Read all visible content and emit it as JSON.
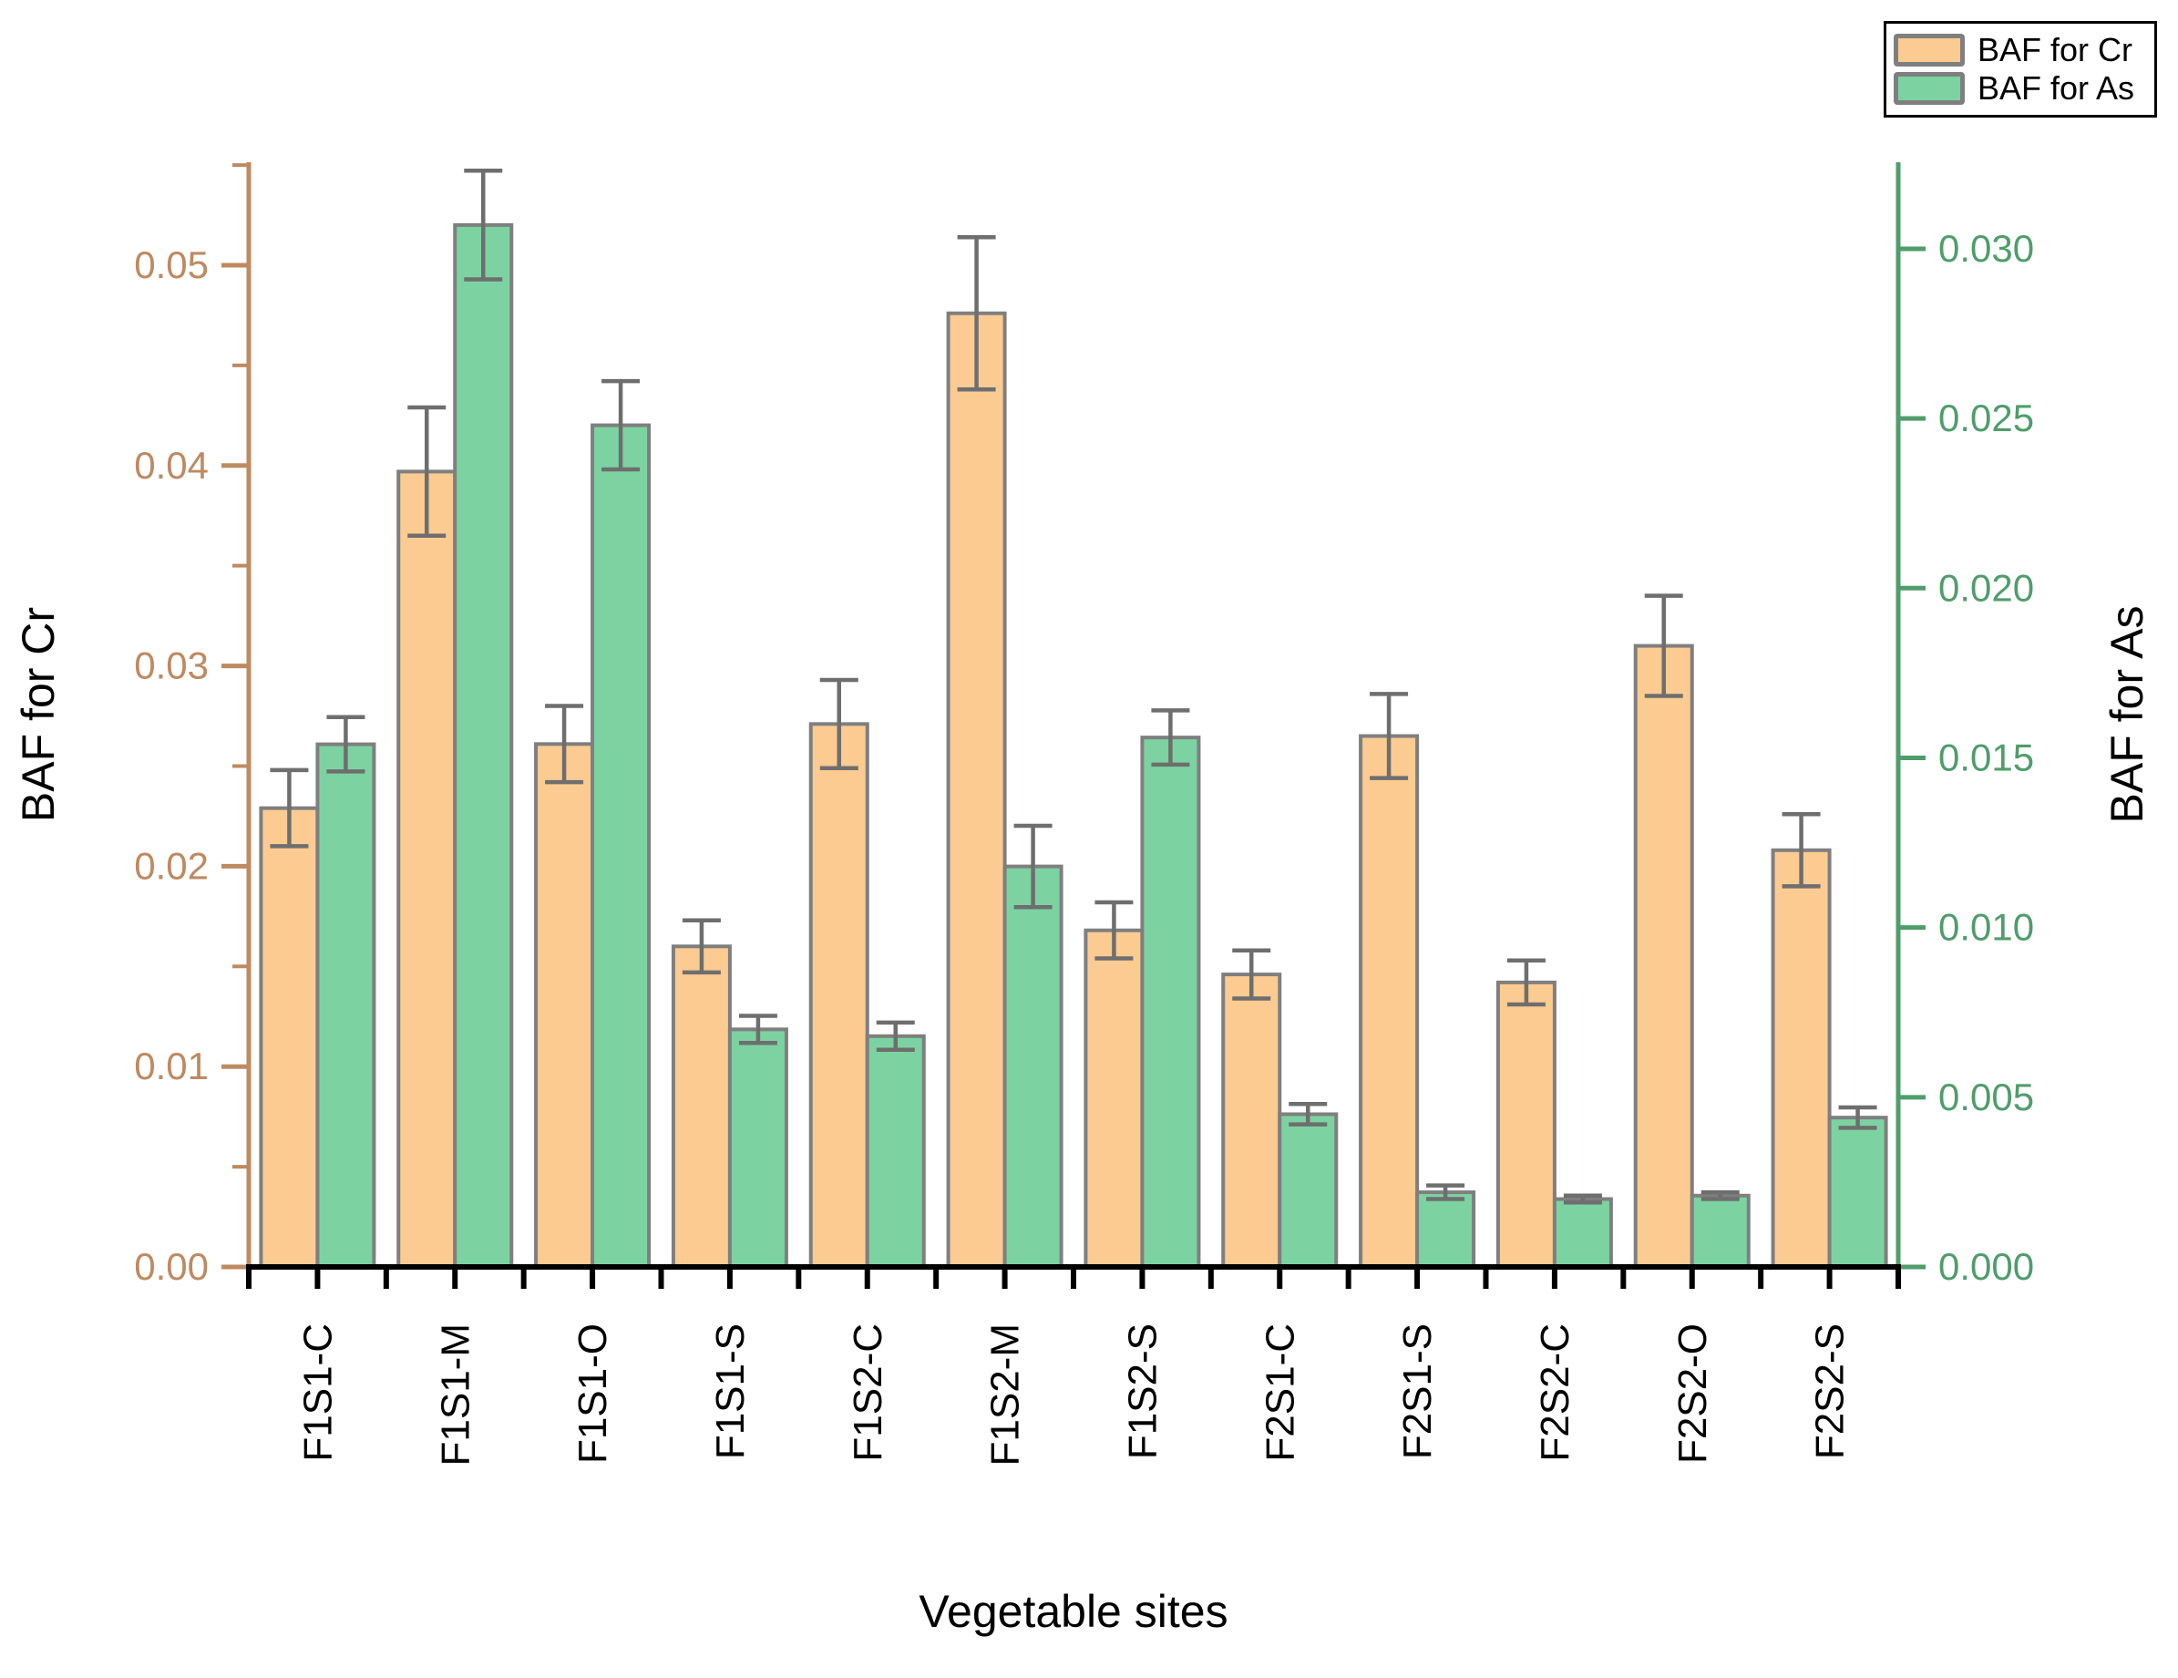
{
  "chart_data": {
    "type": "bar",
    "title": "",
    "xlabel": "Vegetable sites",
    "categories": [
      "F1S1-C",
      "F1S1-M",
      "F1S1-O",
      "F1S1-S",
      "F1S2-C",
      "F1S2-M",
      "F1S2-S",
      "F2S1-C",
      "F2S1-S",
      "F2S2-C",
      "F2S2-O",
      "F2S2-S"
    ],
    "series": [
      {
        "name": "BAF for Cr",
        "axis": "left",
        "color": "#FBCB92",
        "edge_color": "#7F7F7F",
        "values": [
          0.0229,
          0.0397,
          0.0261,
          0.016,
          0.0271,
          0.0476,
          0.0168,
          0.0146,
          0.0265,
          0.0142,
          0.031,
          0.0208
        ],
        "errors": [
          0.0019,
          0.0032,
          0.0019,
          0.0013,
          0.0022,
          0.0038,
          0.0014,
          0.0012,
          0.0021,
          0.0011,
          0.0025,
          0.0018
        ]
      },
      {
        "name": "BAF for As",
        "axis": "right",
        "color": "#7CD3A1",
        "edge_color": "#7F7F7F",
        "values": [
          0.0154,
          0.0307,
          0.0248,
          0.007,
          0.0068,
          0.0118,
          0.0156,
          0.0045,
          0.0022,
          0.002,
          0.0021,
          0.0044
        ],
        "errors": [
          0.0008,
          0.0016,
          0.0013,
          0.0004,
          0.0004,
          0.0012,
          0.0008,
          0.0003,
          0.0002,
          0.0001,
          0.0001,
          0.0003
        ]
      }
    ],
    "left_axis": {
      "label": "BAF for Cr",
      "color": "#BE8A60",
      "tick_labels": [
        "0.00",
        "0.01",
        "0.02",
        "0.03",
        "0.04",
        "0.05"
      ],
      "tick_values": [
        0.0,
        0.01,
        0.02,
        0.03,
        0.04,
        0.05
      ],
      "minor_tick_values": [
        0.005,
        0.015,
        0.025,
        0.035,
        0.045,
        0.055
      ],
      "min": 0.0,
      "max": 0.05514
    },
    "right_axis": {
      "label": "BAF for As",
      "color": "#4F9D6B",
      "tick_labels": [
        "0.000",
        "0.005",
        "0.010",
        "0.015",
        "0.020",
        "0.025",
        "0.030"
      ],
      "tick_values": [
        0.0,
        0.005,
        0.01,
        0.015,
        0.02,
        0.025,
        0.03
      ],
      "minor_tick_values": [],
      "min": 0.0,
      "max": 0.03255
    },
    "error_bar_color": "#6E6E6E",
    "x_axis_color": "#000000",
    "grid": false,
    "legend": {
      "position": "top-right"
    }
  }
}
